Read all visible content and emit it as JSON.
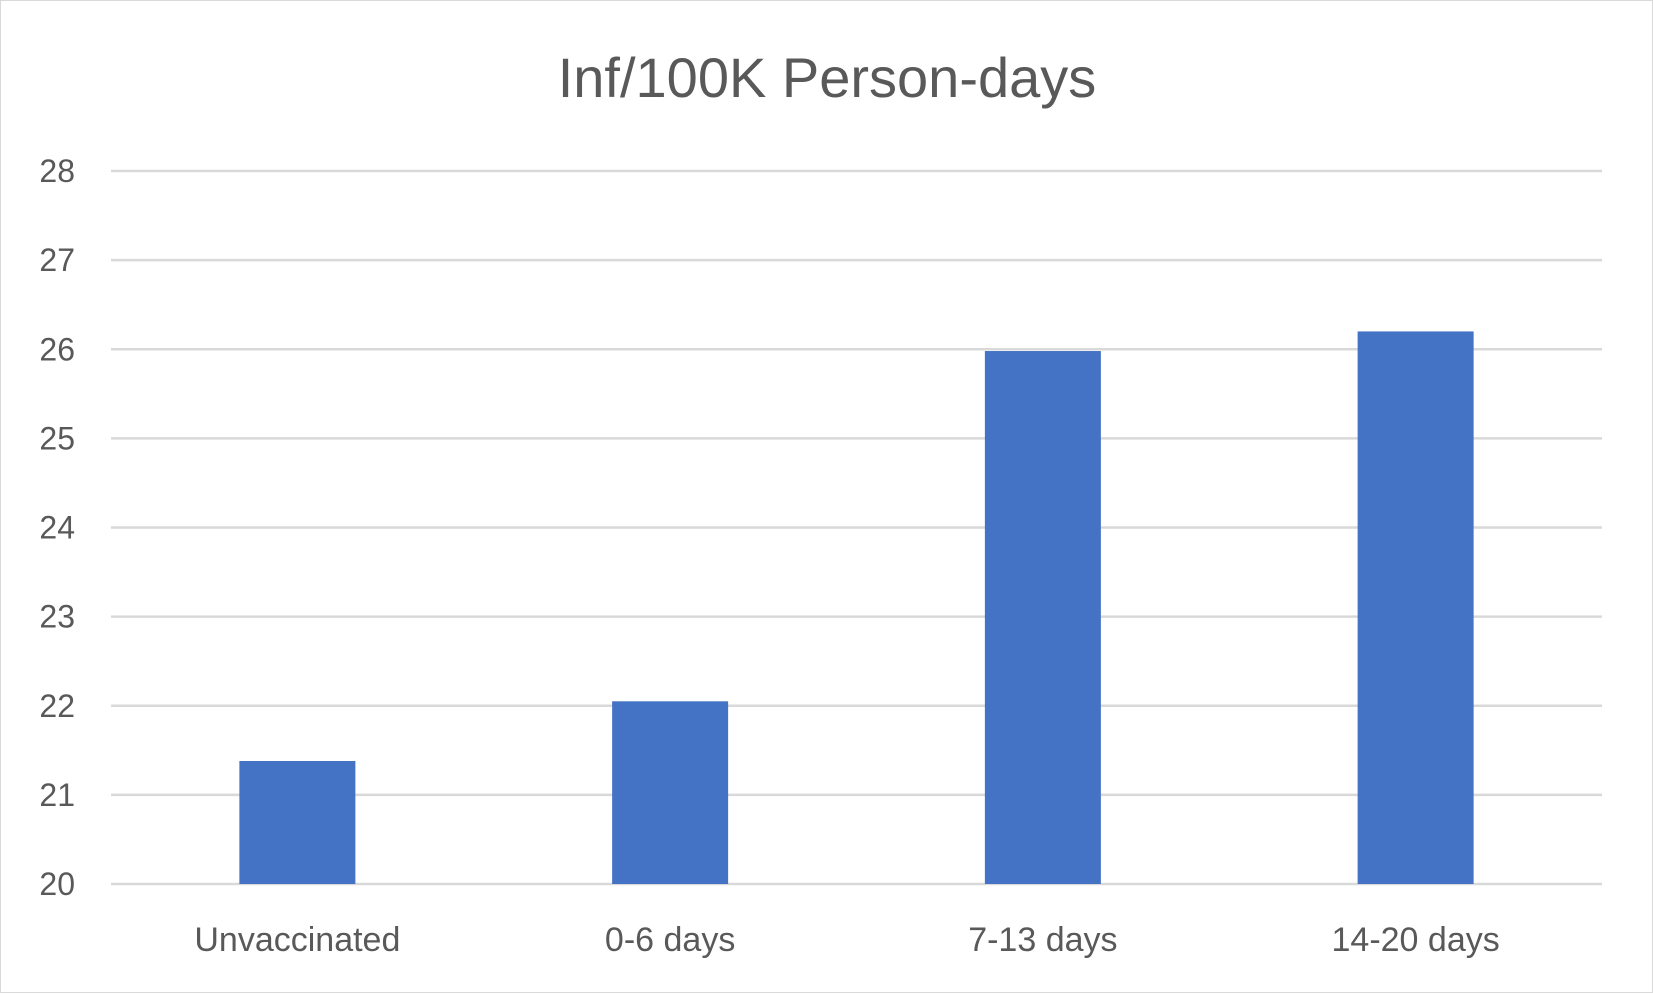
{
  "chart_data": {
    "type": "bar",
    "title": "Inf/100K Person-days",
    "xlabel": "",
    "ylabel": "",
    "categories": [
      "Unvaccinated",
      "0-6 days",
      "7-13 days",
      "14-20 days"
    ],
    "series": [
      {
        "values": [
          21.38,
          22.05,
          25.98,
          26.2
        ]
      }
    ],
    "ylim": [
      20,
      28
    ],
    "yticks": [
      "20",
      "21",
      "22",
      "23",
      "24",
      "25",
      "26",
      "27",
      "28"
    ],
    "grid": true,
    "legend": "none",
    "bar_color": "#4472C4",
    "grid_color": "#d9d9d9",
    "text_color": "#595959"
  }
}
